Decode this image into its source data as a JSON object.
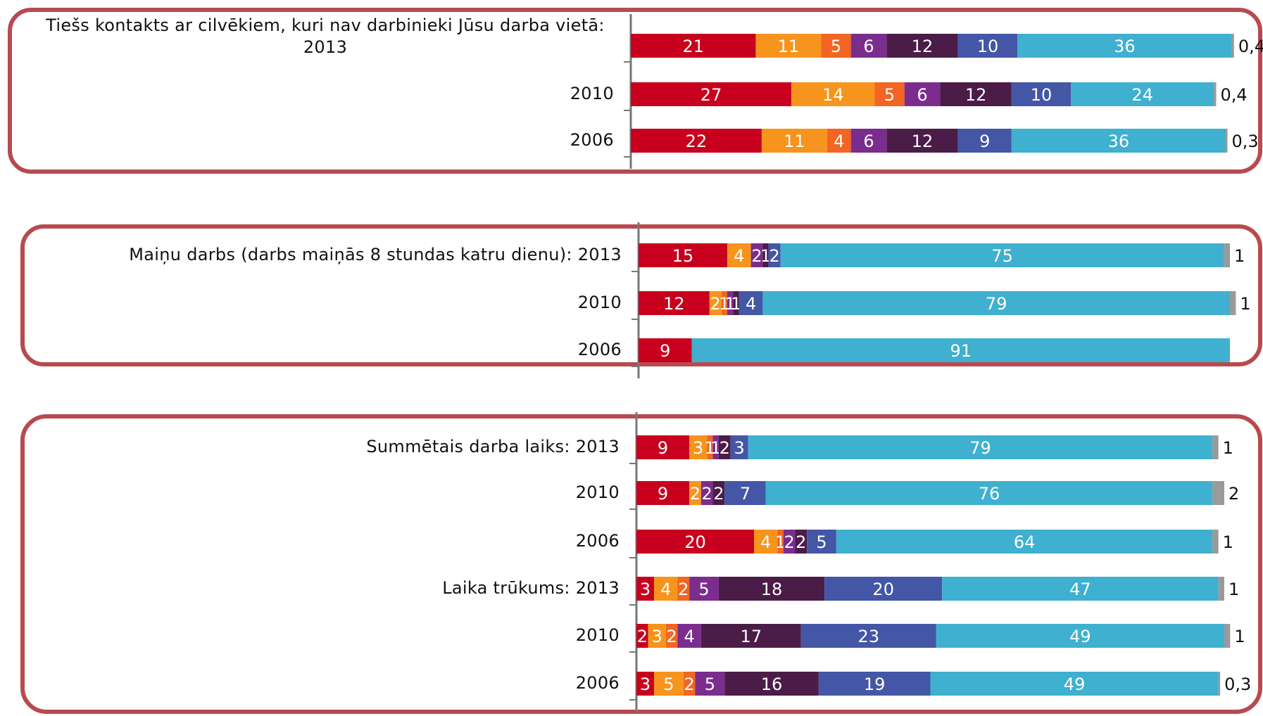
{
  "chart_data": [
    {
      "type": "bar",
      "orientation": "horizontal",
      "stacked": true,
      "categories": [
        "Tiešs kontakts ar cilvēkiem, kuri nav darbinieki Jūsu darba vietā: 2013",
        "2010",
        "2006"
      ],
      "series": [
        {
          "color": "#c8001e",
          "values": [
            21,
            27,
            22
          ]
        },
        {
          "color": "#f7941d",
          "values": [
            11,
            14,
            11
          ]
        },
        {
          "color": "#f26522",
          "values": [
            5,
            5,
            4
          ]
        },
        {
          "color": "#7b2d8e",
          "values": [
            6,
            6,
            6
          ]
        },
        {
          "color": "#4b1c48",
          "values": [
            12,
            12,
            12
          ]
        },
        {
          "color": "#4456a6",
          "values": [
            10,
            10,
            9
          ]
        },
        {
          "color": "#3fb0cf",
          "values": [
            36,
            24,
            36
          ]
        },
        {
          "color": "#9a9a9a",
          "values": [
            0.4,
            0.4,
            0.3
          ],
          "value_labels": [
            "0,4",
            "0,4",
            "0,3"
          ]
        }
      ]
    },
    {
      "type": "bar",
      "orientation": "horizontal",
      "stacked": true,
      "categories": [
        "Maiņu darbs (darbs maiņās 8 stundas katru dienu): 2013",
        "2010",
        "2006"
      ],
      "series": [
        {
          "color": "#c8001e",
          "values": [
            15,
            12,
            9
          ]
        },
        {
          "color": "#f7941d",
          "values": [
            4,
            2,
            null
          ]
        },
        {
          "color": "#f26522",
          "values": [
            null,
            1,
            null
          ]
        },
        {
          "color": "#7b2d8e",
          "values": [
            2,
            1,
            null
          ]
        },
        {
          "color": "#4b1c48",
          "values": [
            1,
            1,
            null
          ]
        },
        {
          "color": "#4456a6",
          "values": [
            2,
            4,
            null
          ]
        },
        {
          "color": "#3fb0cf",
          "values": [
            75,
            79,
            91
          ]
        },
        {
          "color": "#9a9a9a",
          "values": [
            1,
            1,
            null
          ]
        }
      ]
    },
    {
      "type": "bar",
      "orientation": "horizontal",
      "stacked": true,
      "categories": [
        "Summētais darba laiks: 2013",
        "2010",
        "2006",
        "Laika trūkums: 2013",
        "2010",
        "2006"
      ],
      "series": [
        {
          "color": "#c8001e",
          "values": [
            9,
            9,
            20,
            3,
            2,
            3
          ]
        },
        {
          "color": "#f7941d",
          "values": [
            3,
            2,
            4,
            4,
            3,
            5
          ]
        },
        {
          "color": "#f26522",
          "values": [
            1,
            null,
            1,
            2,
            2,
            2
          ]
        },
        {
          "color": "#7b2d8e",
          "values": [
            1,
            2,
            2,
            5,
            4,
            5
          ]
        },
        {
          "color": "#4b1c48",
          "values": [
            2,
            2,
            2,
            18,
            17,
            16
          ]
        },
        {
          "color": "#4456a6",
          "values": [
            3,
            7,
            5,
            20,
            23,
            19
          ]
        },
        {
          "color": "#3fb0cf",
          "values": [
            79,
            76,
            64,
            47,
            49,
            49
          ]
        },
        {
          "color": "#9a9a9a",
          "values": [
            1,
            2,
            1,
            1,
            1,
            0.3
          ],
          "value_labels": [
            "1",
            "2",
            "1",
            "1",
            "1",
            "0,3"
          ]
        }
      ]
    }
  ]
}
